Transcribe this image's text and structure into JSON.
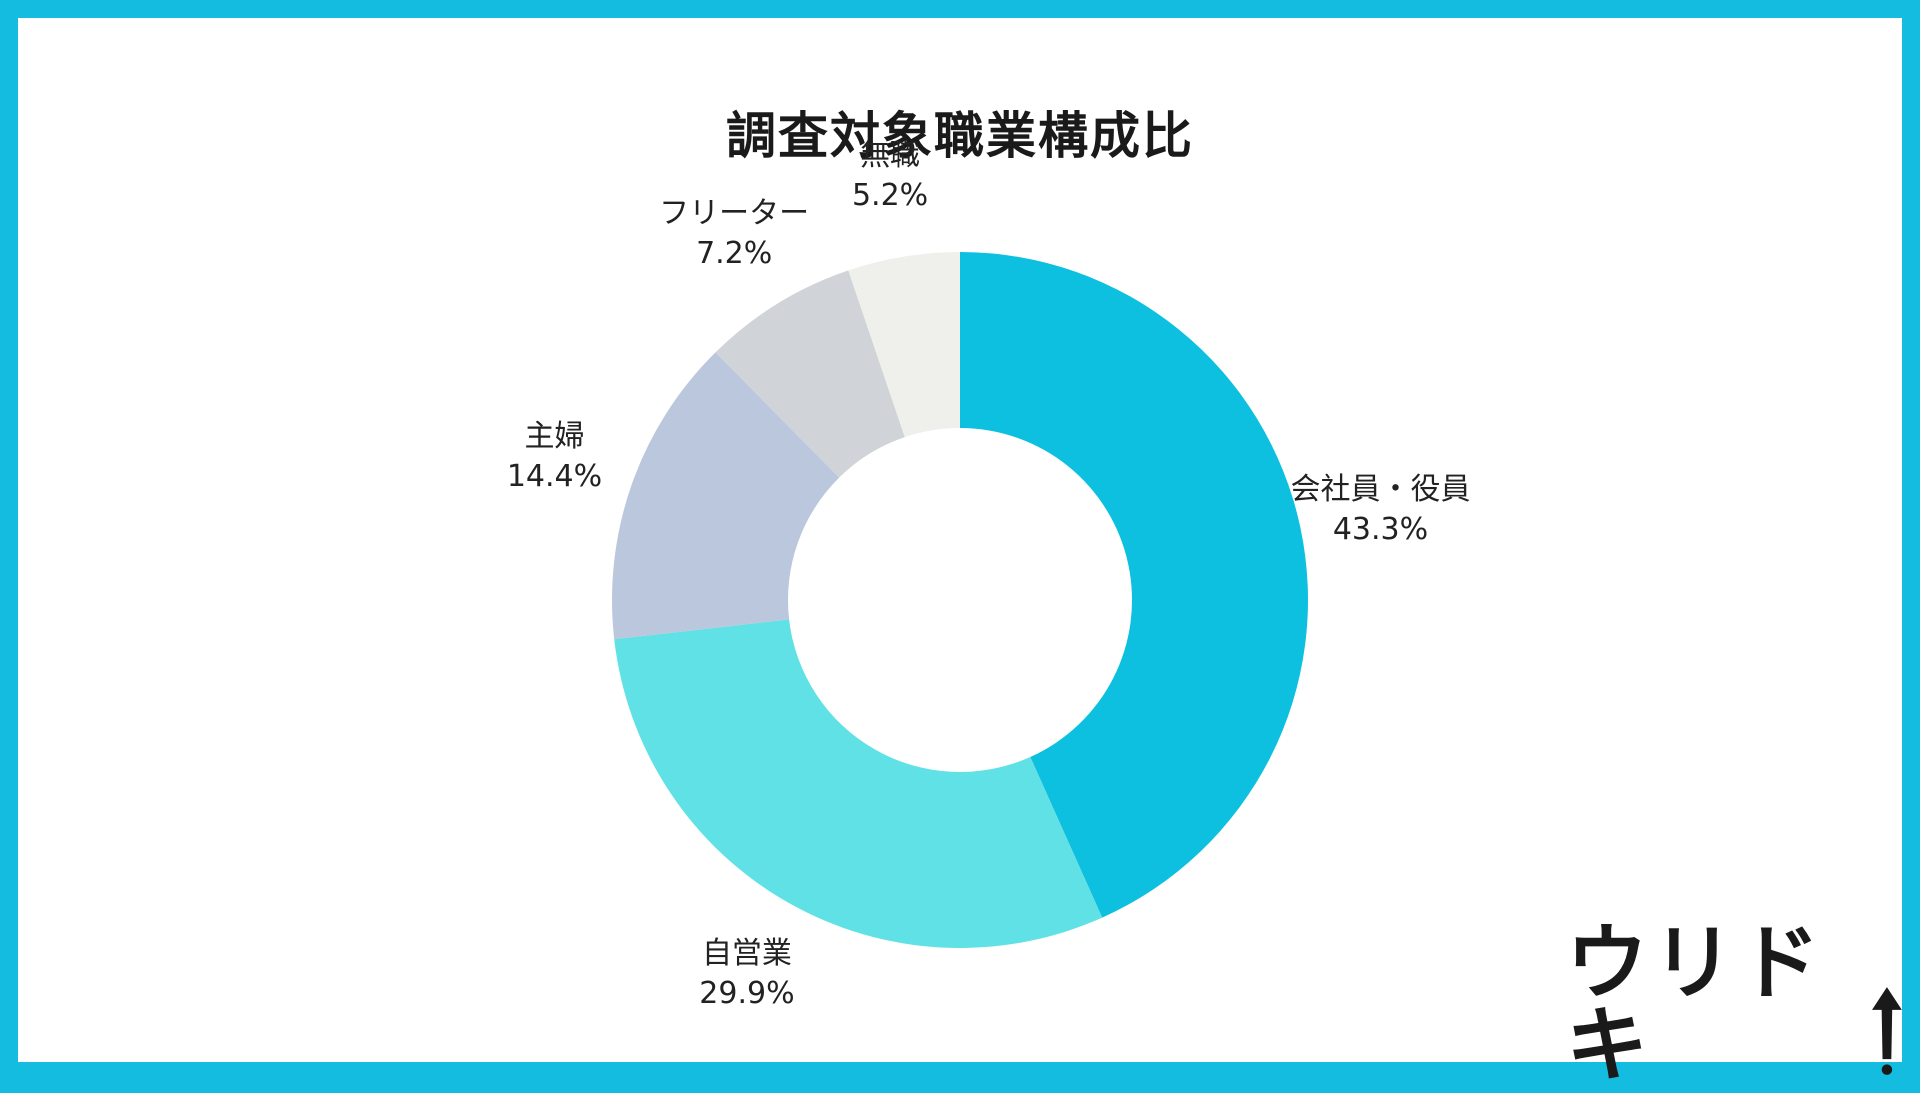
{
  "chart_data": {
    "type": "pie",
    "variant": "donut",
    "title": "調査対象職業構成比",
    "slices": [
      {
        "label": "会社員・役員",
        "value": 43.3,
        "display": "43.3%",
        "color": "#0ec0e0"
      },
      {
        "label": "自営業",
        "value": 29.9,
        "display": "29.9%",
        "color": "#5fe1e6"
      },
      {
        "label": "主婦",
        "value": 14.4,
        "display": "14.4%",
        "color": "#bac7dc"
      },
      {
        "label": "フリーター",
        "value": 7.2,
        "display": "7.2%",
        "color": "#d0d4d8"
      },
      {
        "label": "無職",
        "value": 5.2,
        "display": "5.2%",
        "color": "#efefec"
      }
    ],
    "legend": "none",
    "start": "top",
    "direction": "clockwise"
  },
  "brand": {
    "logo_text": "ウリドキ",
    "logo_icon": "up-arrow-icon",
    "frame_color": "#14bde0"
  }
}
